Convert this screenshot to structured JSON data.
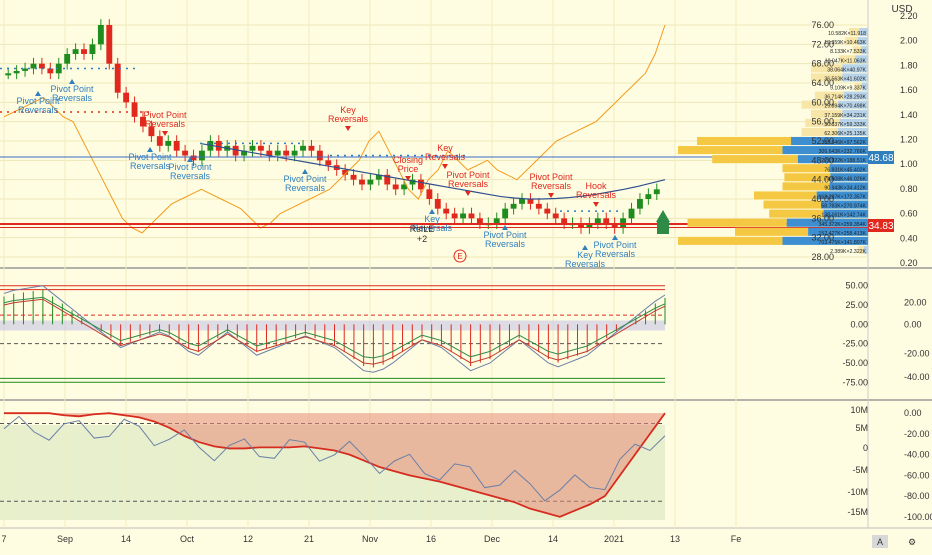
{
  "header": {
    "currency": "USD"
  },
  "colors": {
    "bg": "#fffde1",
    "up": "#1e8c1e",
    "down": "#e0281e",
    "pivot": "#2f7fbf",
    "orange": "#f29b1d",
    "navy": "#2f4f8f",
    "price_line": "#3d6cc8",
    "price_badge": "#2f7fbf",
    "support_badge": "#e0281e",
    "red_annot": "#e0281e"
  },
  "chart_data": [
    {
      "type": "line",
      "title": "",
      "xlabel": "",
      "ylabel": "USD",
      "x_ticks": [
        "7",
        "Sep",
        "14",
        "Oct",
        "12",
        "21",
        "Nov",
        "16",
        "Dec",
        "14",
        "2021",
        "13",
        "Fe"
      ],
      "y_ticks_left": [
        28.0,
        32.0,
        36.0,
        40.0,
        44.0,
        48.0,
        52.0,
        56.0,
        60.0,
        64.0,
        68.0,
        72.0,
        76.0
      ],
      "y_ticks_right": [
        0.2,
        0.4,
        0.6,
        0.8,
        1.0,
        1.2,
        1.4,
        1.6,
        1.8,
        2.0,
        2.2
      ],
      "ylim_left": [
        28,
        76
      ],
      "last_price": "48.68",
      "support_price": "34.83",
      "candles_close": [
        66,
        66.5,
        67,
        68,
        67,
        66,
        68,
        70,
        71,
        70,
        72,
        76,
        68,
        62,
        60,
        57,
        55,
        53,
        51,
        52,
        50,
        49,
        48,
        50,
        52,
        50,
        51,
        49,
        50,
        51,
        50,
        49,
        50,
        49,
        50,
        51,
        50,
        48,
        47,
        46,
        45,
        44,
        43,
        44,
        45,
        43,
        42,
        43,
        44,
        42,
        40,
        38,
        37,
        36,
        37,
        36,
        35,
        35,
        36,
        38,
        39,
        40,
        39,
        38,
        37,
        36,
        35,
        35,
        34,
        35,
        36,
        35,
        34,
        36,
        38,
        40,
        41,
        42
      ],
      "orange_line": [
        57,
        58,
        59,
        60,
        61,
        59,
        57,
        56,
        52,
        48,
        44,
        40,
        36,
        34,
        33,
        35,
        37,
        39,
        40,
        41,
        42,
        41,
        40,
        39,
        38,
        36,
        34,
        35,
        37,
        38,
        39,
        40,
        41,
        42,
        44,
        46,
        48,
        52,
        54,
        50,
        46,
        42,
        40,
        44,
        46,
        50,
        48,
        46,
        47,
        48,
        46,
        45,
        44,
        46,
        48,
        50,
        52,
        53,
        54,
        55,
        56,
        58,
        60,
        62,
        64,
        66,
        70,
        76
      ],
      "navy_line": [
        51.5,
        51,
        50.5,
        50,
        49.5,
        49,
        48.5,
        48,
        47.5,
        47,
        46.5,
        46,
        45.5,
        45,
        44.5,
        44,
        43.5,
        43,
        42.5,
        42,
        41.5,
        41,
        40.5,
        40.2,
        40,
        40,
        40.1,
        40.3,
        40.6,
        41,
        41.5,
        42,
        42.6,
        43.3,
        44
      ],
      "pivots_blue": [
        {
          "text": "Pivot Point Reversals"
        },
        {
          "text": "Pivot Point Reversals"
        },
        {
          "text": "Pivot Point Reversals"
        },
        {
          "text": "Pivot Point Reversals"
        },
        {
          "text": "Pivot Point Reversals"
        },
        {
          "text": "Key Reversals"
        },
        {
          "text": "Pivot Point Reversals"
        },
        {
          "text": "Key Reversals"
        },
        {
          "text": "Pivot Point Reversals"
        }
      ],
      "pivots_red": [
        {
          "text": "Pivot Point Reversals"
        },
        {
          "text": "Key Reversals"
        },
        {
          "text": "Closing Price"
        },
        {
          "text": "Key Reversals"
        },
        {
          "text": "Pivot Point Reversals"
        },
        {
          "text": "Pivot Point Reversals"
        },
        {
          "text": "Hook Reversals"
        }
      ],
      "extra_labels": {
        "rsi": "RsILE",
        "plus2": "+2",
        "e_badge": "E"
      },
      "volume_profile": [
        {
          "text": "10.582K×11.918"
        },
        {
          "text": "13.359K×10.463K"
        },
        {
          "text": "8.133K×7.533K"
        },
        {
          "text": "18.047K×11.063K"
        },
        {
          "text": "38.064K×40.97K"
        },
        {
          "text": "36.563K×41.602K"
        },
        {
          "text": "9.109K×9.337K"
        },
        {
          "text": "36.714K×28.293K"
        },
        {
          "text": "29.894K×70.498K"
        },
        {
          "text": "37.159K×34.231K"
        },
        {
          "text": "30.337K×59.333K"
        },
        {
          "text": "62.306K×25.135K"
        },
        {
          "text": "388.546K×97.562K"
        },
        {
          "text": "306.643K×232.766K"
        },
        {
          "text": "229.922K×188.51K"
        },
        {
          "text": "76.831K×45.402K"
        },
        {
          "text": "74.608K×46.026K"
        },
        {
          "text": "90.943K×34.412K"
        },
        {
          "text": "168.287K×172.357K"
        },
        {
          "text": "58.783K×270.974K"
        },
        {
          "text": "138.161K×142.74K"
        },
        {
          "text": "345.372K×259.354K"
        },
        {
          "text": "152.427K×258.413K"
        },
        {
          "text": "703.475K×141.807K"
        },
        {
          "text": "2.389K×2.322K"
        }
      ]
    },
    {
      "type": "line",
      "title": "",
      "y_ticks_left": [
        -75.0,
        -50.0,
        -25.0,
        0.0,
        25.0,
        50.0
      ],
      "y_ticks_right": [
        -40.0,
        -20.0,
        0.0,
        20.0
      ],
      "ylim": [
        -85,
        60
      ],
      "gray_line": [
        40,
        44,
        46,
        48,
        50,
        40,
        30,
        20,
        10,
        0,
        -10,
        -20,
        -30,
        -25,
        -20,
        -15,
        -10,
        -15,
        -25,
        -35,
        -40,
        -30,
        -20,
        -10,
        -20,
        -30,
        -40,
        -35,
        -30,
        -25,
        -20,
        -15,
        -20,
        -25,
        -30,
        -40,
        -50,
        -60,
        -62,
        -58,
        -50,
        -40,
        -30,
        -20,
        -25,
        -30,
        -40,
        -50,
        -60,
        -55,
        -50,
        -40,
        -30,
        -20,
        -30,
        -40,
        -50,
        -55,
        -50,
        -45,
        -40,
        -30,
        -20,
        -10,
        0,
        10,
        20,
        30,
        38
      ]
    },
    {
      "type": "area",
      "title": "",
      "y_ticks_left": [
        "10M",
        "5M",
        "0",
        "-5M",
        "-10M",
        "-15M"
      ],
      "y_ticks_right": [
        0.0,
        -20.0,
        -40.0,
        -60.0,
        -80.0,
        -100.0
      ],
      "ylim_right": [
        -105,
        5
      ],
      "green_line": [
        0,
        0,
        0,
        0,
        -2,
        -3,
        -1,
        0,
        -2,
        -4,
        -8,
        -14,
        -22,
        -28,
        -32,
        -34,
        -34,
        -33,
        -33,
        -33,
        -32,
        -34,
        -36,
        -40,
        -46,
        -52,
        -56,
        -60,
        -63,
        -66,
        -70,
        -74,
        -78,
        -82,
        -86,
        -92,
        -96,
        -100,
        -94,
        -88,
        -80,
        -60,
        -40,
        -20,
        0
      ]
    }
  ]
}
